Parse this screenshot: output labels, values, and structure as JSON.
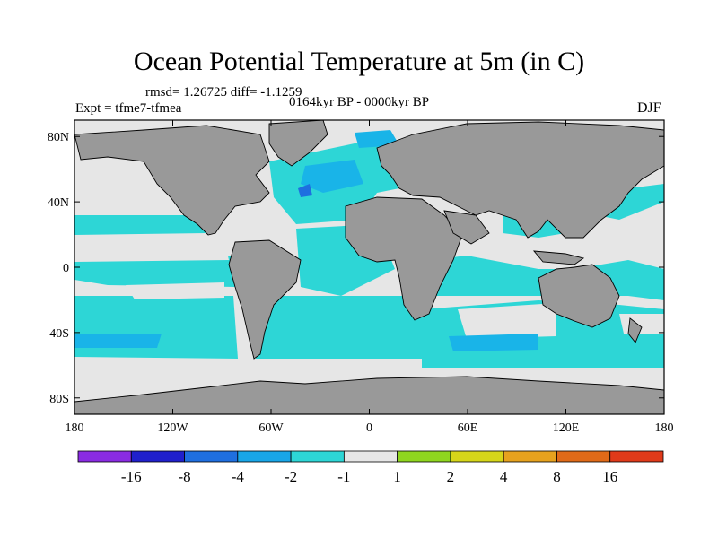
{
  "header": {
    "title": "Ocean Potential Temperature at 5m (in C)",
    "stats": "rmsd= 1.26725 diff= -1.1259",
    "experiment": "Expt = tfme7-tfmea",
    "period": "0164kyr BP - 0000kyr BP",
    "season": "DJF"
  },
  "map": {
    "lon_ticks": [
      "180",
      "120W",
      "60W",
      "0",
      "60E",
      "120E",
      "180"
    ],
    "lat_ticks": [
      "80N",
      "40N",
      "0",
      "40S",
      "80S"
    ],
    "lon_range": [
      -180,
      180
    ],
    "lat_range": [
      -90,
      90
    ],
    "colors": {
      "land": "#999999",
      "ocean_light": "#e6e6e6",
      "ocean_cyan": "#2dd6d6",
      "ocean_blue": "#19b4e8",
      "ocean_deep": "#1e6fe0",
      "coast": "#000000"
    }
  },
  "colorbar": {
    "levels": [
      "-16",
      "-8",
      "-4",
      "-2",
      "-1",
      "1",
      "2",
      "4",
      "8",
      "16"
    ],
    "bins": [
      {
        "color": "#8a2be2",
        "label": "< -16"
      },
      {
        "color": "#2020cc",
        "label": "-16 to -8"
      },
      {
        "color": "#1f6fe0",
        "label": "-8 to -4"
      },
      {
        "color": "#18a6e8",
        "label": "-4 to -2"
      },
      {
        "color": "#2dd6d6",
        "label": "-2 to -1"
      },
      {
        "color": "#e6e6e6",
        "label": "-1 to 1"
      },
      {
        "color": "#8fd61f",
        "label": "1 to 2"
      },
      {
        "color": "#d6d61a",
        "label": "2 to 4"
      },
      {
        "color": "#e6a21e",
        "label": "4 to 8"
      },
      {
        "color": "#e06a18",
        "label": "8 to 16"
      },
      {
        "color": "#e03a1a",
        "label": "> 16"
      }
    ]
  }
}
